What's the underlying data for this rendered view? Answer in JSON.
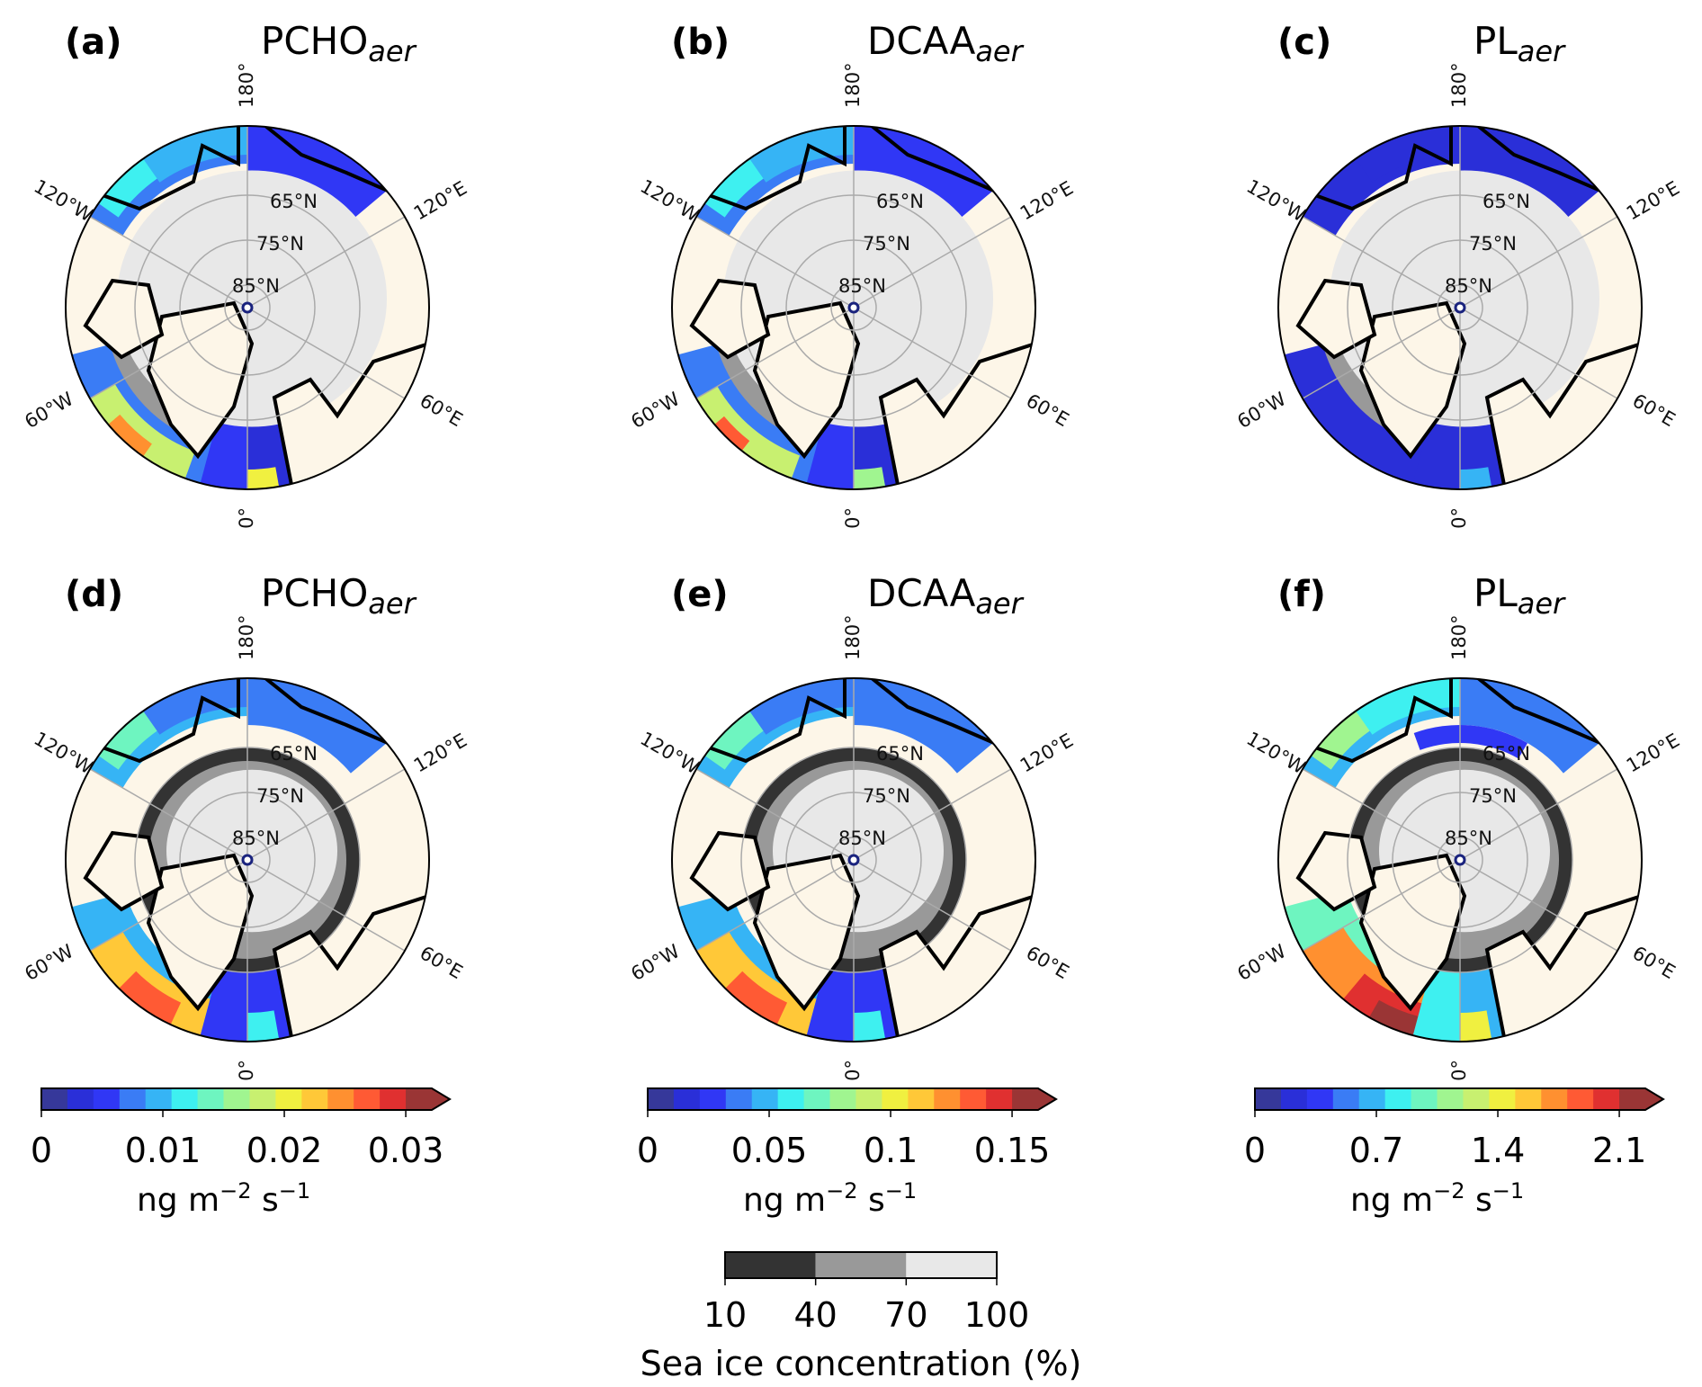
{
  "panels": [
    {
      "label": "(a)",
      "title": "PCHO",
      "subscript": "aer",
      "row": 0,
      "col": 0,
      "variant": "a"
    },
    {
      "label": "(b)",
      "title": "DCAA",
      "subscript": "aer",
      "row": 0,
      "col": 1,
      "variant": "b"
    },
    {
      "label": "(c)",
      "title": "PL",
      "subscript": "aer",
      "row": 0,
      "col": 2,
      "variant": "c"
    },
    {
      "label": "(d)",
      "title": "PCHO",
      "subscript": "aer",
      "row": 1,
      "col": 0,
      "variant": "d"
    },
    {
      "label": "(e)",
      "title": "DCAA",
      "subscript": "aer",
      "row": 1,
      "col": 1,
      "variant": "e"
    },
    {
      "label": "(f)",
      "title": "PL",
      "subscript": "aer",
      "row": 1,
      "col": 2,
      "variant": "f"
    }
  ],
  "longitude_labels": {
    "top": "180°",
    "bottom": "0°",
    "upper_left": "120°W",
    "upper_right": "120°E",
    "lower_left": "60°W",
    "lower_right": "60°E"
  },
  "latitude_labels": [
    "65°N",
    "75°N",
    "85°N"
  ],
  "colorbars": [
    {
      "ticks": [
        "0",
        "0.01",
        "0.02",
        "0.03"
      ],
      "min": 0,
      "max": 0.03,
      "unit": "ng m",
      "exp1": "−2",
      "mid": " s",
      "exp2": "−1",
      "extend": "max"
    },
    {
      "ticks": [
        "0",
        "0.05",
        "0.1",
        "0.15"
      ],
      "min": 0,
      "max": 0.15,
      "unit": "ng m",
      "exp1": "−2",
      "mid": " s",
      "exp2": "−1",
      "extend": "max"
    },
    {
      "ticks": [
        "0",
        "0.7",
        "1.4",
        "2.1"
      ],
      "min": 0,
      "max": 2.1,
      "unit": "ng m",
      "exp1": "−2",
      "mid": " s",
      "exp2": "−1",
      "extend": "max"
    }
  ],
  "colormap": [
    "#36389a",
    "#2a2fd8",
    "#3037f5",
    "#3a7cf5",
    "#36b4f5",
    "#3ef0f0",
    "#6ef5c0",
    "#a0f590",
    "#c8f070",
    "#f0f040",
    "#ffc838",
    "#ff9030",
    "#ff5a34",
    "#e03030",
    "#9a3535"
  ],
  "sea_ice_colorbar": {
    "ticks": [
      "10",
      "40",
      "70",
      "100"
    ],
    "colors": [
      "#333333",
      "#999999",
      "#e8e8e8"
    ],
    "label": "Sea ice concentration (%)"
  },
  "colors": {
    "land": "#fdf6e8",
    "sea_ice_high": "#e8e8e8",
    "grid": "#aaaaaa",
    "coast": "#000000"
  }
}
